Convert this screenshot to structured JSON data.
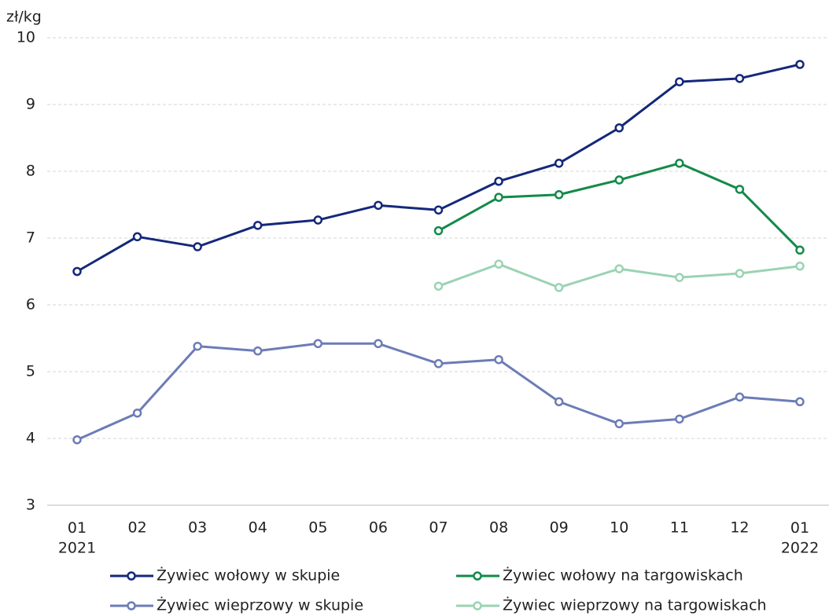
{
  "chart_data": {
    "type": "line",
    "ylabel": "zł/kg",
    "categories": [
      "01\n2021",
      "02",
      "03",
      "04",
      "05",
      "06",
      "07",
      "08",
      "09",
      "10",
      "11",
      "12",
      "01\n2022"
    ],
    "series": [
      {
        "name": "Żywiec wołowy w skupie",
        "color": "#14287a",
        "values": [
          6.5,
          7.02,
          6.87,
          7.19,
          7.27,
          7.49,
          7.42,
          7.85,
          8.12,
          8.65,
          9.34,
          9.39,
          9.6
        ]
      },
      {
        "name": "Żywiec wołowy na targowiskach",
        "color": "#138a48",
        "values": [
          null,
          null,
          null,
          null,
          null,
          null,
          7.11,
          7.61,
          7.65,
          7.87,
          8.12,
          7.73,
          6.82
        ]
      },
      {
        "name": "Żywiec wieprzowy w skupie",
        "color": "#6c7cb6",
        "values": [
          3.98,
          4.38,
          5.38,
          5.31,
          5.42,
          5.42,
          5.12,
          5.18,
          4.55,
          4.22,
          4.29,
          4.62,
          4.55
        ]
      },
      {
        "name": "Żywiec wieprzowy na targowiskach",
        "color": "#9bd3b3",
        "values": [
          null,
          null,
          null,
          null,
          null,
          null,
          6.28,
          6.61,
          6.26,
          6.54,
          6.41,
          6.47,
          6.58
        ]
      }
    ],
    "ylim": [
      3,
      10
    ],
    "yticks": [
      3,
      4,
      5,
      6,
      7,
      8,
      9,
      10
    ],
    "grid": true,
    "legend": "bottom"
  }
}
